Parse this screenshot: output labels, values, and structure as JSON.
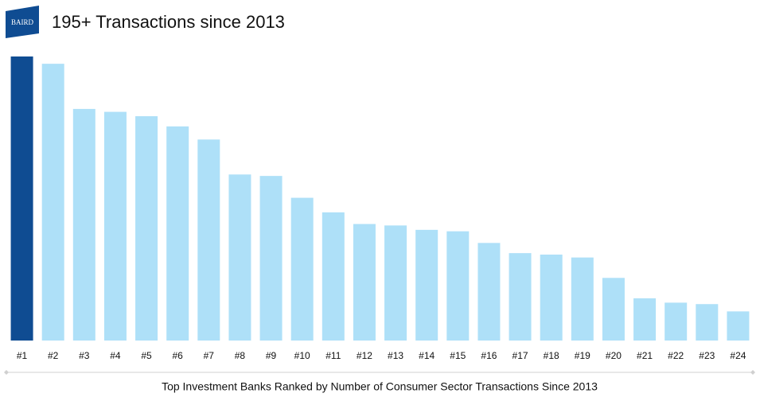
{
  "logo": "BAIRD",
  "chart_data": {
    "type": "bar",
    "title": "195+ Transactions since 2013",
    "x_label": "Top Investment Banks Ranked by Number of Consumer Sector Transactions Since 2013",
    "categories": [
      "#1",
      "#2",
      "#3",
      "#4",
      "#5",
      "#6",
      "#7",
      "#8",
      "#9",
      "#10",
      "#11",
      "#12",
      "#13",
      "#14",
      "#15",
      "#16",
      "#17",
      "#18",
      "#19",
      "#20",
      "#21",
      "#22",
      "#23",
      "#24"
    ],
    "values": [
      195,
      190,
      159,
      157,
      154,
      147,
      138,
      114,
      113,
      98,
      88,
      80,
      79,
      76,
      75,
      67,
      60,
      59,
      57,
      43,
      29,
      26,
      25,
      20
    ],
    "colors": [
      "#0f4c92",
      "#aee0f8",
      "#aee0f8",
      "#aee0f8",
      "#aee0f8",
      "#aee0f8",
      "#aee0f8",
      "#aee0f8",
      "#aee0f8",
      "#aee0f8",
      "#aee0f8",
      "#aee0f8",
      "#aee0f8",
      "#aee0f8",
      "#aee0f8",
      "#aee0f8",
      "#aee0f8",
      "#aee0f8",
      "#aee0f8",
      "#aee0f8",
      "#aee0f8",
      "#aee0f8",
      "#aee0f8",
      "#aee0f8"
    ],
    "ylim": [
      0,
      195
    ]
  }
}
